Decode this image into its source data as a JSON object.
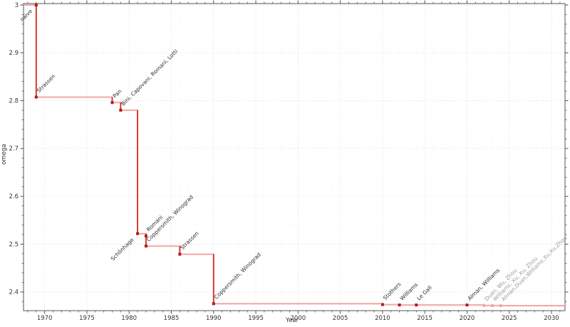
{
  "chart_data": {
    "type": "line",
    "step": "post",
    "title": "",
    "xlabel": "Year",
    "ylabel": "omega",
    "xlim": [
      1967.5,
      2031.6
    ],
    "ylim": [
      2.361,
      3.003
    ],
    "grid": true,
    "legend": "none",
    "x_major_ticks": [
      1970,
      1975,
      1980,
      1985,
      1990,
      1995,
      2000,
      2005,
      2010,
      2015,
      2020,
      2025,
      2030
    ],
    "y_major_ticks": [
      2.4,
      2.5,
      2.6,
      2.7,
      2.8,
      2.9,
      3
    ],
    "y_tick_labels": [
      "2.4",
      "2.5",
      "2.6",
      "2.7",
      "2.8",
      "2.9",
      "3"
    ],
    "x_minor_step_years": 1,
    "y_minor_step": 0.02,
    "line_extends_from_left_edge": true,
    "line_extends_to_right_edge": true,
    "points": [
      {
        "year": 1969,
        "omega": 3,
        "label": "naive",
        "anchor": "below-left",
        "dim": false
      },
      {
        "year": 1969,
        "omega": 2.8074,
        "label": "Strassen",
        "anchor": "above-right",
        "dim": false
      },
      {
        "year": 1978,
        "omega": 2.796,
        "label": "Pan",
        "anchor": "above-right",
        "dim": false
      },
      {
        "year": 1979,
        "omega": 2.78,
        "label": "Bini, Capovani, Romani, Lotti",
        "anchor": "above-right",
        "dim": false
      },
      {
        "year": 1981,
        "omega": 2.522,
        "label": "Schönhage",
        "anchor": "below-left",
        "dim": false
      },
      {
        "year": 1982,
        "omega": 2.517,
        "label": "Romani",
        "anchor": "above-right",
        "dim": false
      },
      {
        "year": 1982,
        "omega": 2.496,
        "label": "Coppersmith, Winograd",
        "anchor": "above-right",
        "dim": false
      },
      {
        "year": 1986,
        "omega": 2.479,
        "label": "Strassen",
        "anchor": "above-right",
        "dim": false
      },
      {
        "year": 1990,
        "omega": 2.3755,
        "label": "Coppersmith, Winograd",
        "anchor": "above-right",
        "dim": false
      },
      {
        "year": 2010,
        "omega": 2.3737,
        "label": "Stothers",
        "anchor": "above-right",
        "dim": false
      },
      {
        "year": 2012,
        "omega": 2.3729,
        "label": "Williams",
        "anchor": "above-right",
        "dim": false
      },
      {
        "year": 2014,
        "omega": 2.3728639,
        "label": "Le Gall",
        "anchor": "above-right",
        "dim": false
      },
      {
        "year": 2020,
        "omega": 2.3728596,
        "label": "Alman, Williams",
        "anchor": "above-right",
        "dim": false
      },
      {
        "year": 2022,
        "omega": 2.371866,
        "label": "Duan, Wu, Zhou",
        "anchor": "above-right",
        "dim": true
      },
      {
        "year": 2023,
        "omega": 2.371552,
        "label": "Williams, Xu, Xu, Zhou",
        "anchor": "above-right",
        "dim": true
      },
      {
        "year": 2024,
        "omega": 2.371339,
        "label": "Alman,Duan,Williams,Xu,Xu,Zhou",
        "anchor": "above-right",
        "dim": true
      }
    ],
    "colors": {
      "step_line_light": "#f0a8a8",
      "step_drop_strong": "#d62a20",
      "marker": "#b01c1c",
      "marker_dim": "#f2a6a6",
      "point_label": "#2d2d2d",
      "point_label_dim": "#9b9b9b",
      "axis_frame": "#555555",
      "tick": "#555555",
      "tick_label": "#333333",
      "grid_major": "#d8d8d8",
      "grid_minor": "#f0f0f0",
      "background": "#ffffff"
    }
  }
}
